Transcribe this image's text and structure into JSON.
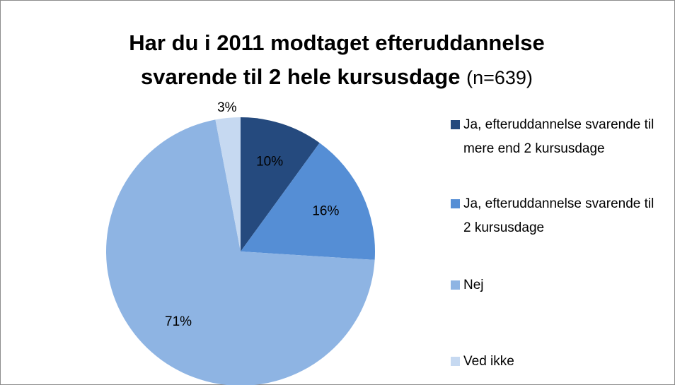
{
  "chart_data": {
    "type": "pie",
    "title": "Har du i 2011 modtaget efteruddannelse svarende til 2 hele kursusdage",
    "subtitle": "(n=639)",
    "categories": [
      "Ja, efteruddannelse svarende til mere end 2 kursusdage",
      "Ja, efteruddannelse svarende til 2 kursusdage",
      "Nej",
      "Ved ikke"
    ],
    "values": [
      10,
      16,
      71,
      3
    ],
    "value_labels": [
      "10%",
      "16%",
      "71%",
      "3%"
    ],
    "colors": [
      "#254a7e",
      "#558ed5",
      "#8eb4e3",
      "#c6d9f1"
    ],
    "legend": "right"
  }
}
